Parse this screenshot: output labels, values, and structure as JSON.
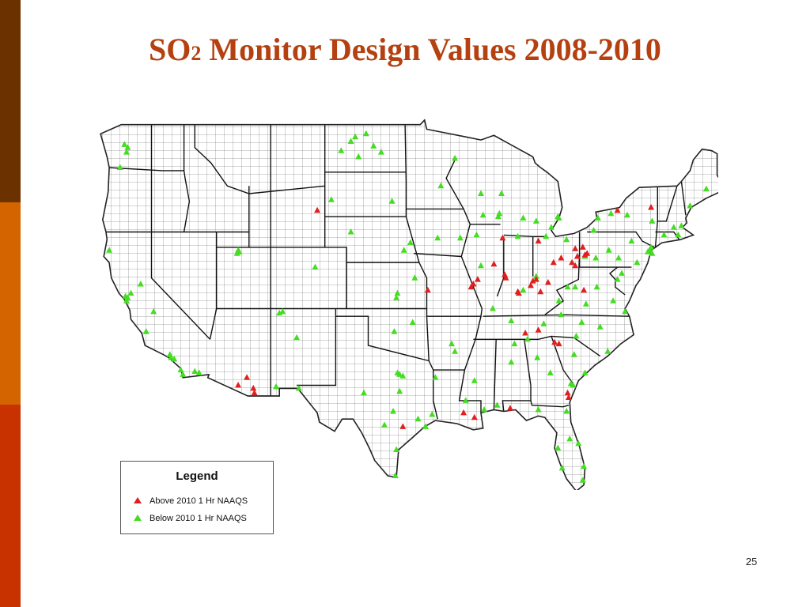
{
  "slide": {
    "title_main": "SO",
    "title_subscript": "2",
    "title_rest": " Monitor Design Values 2008-2010",
    "page_number": "25"
  },
  "colors": {
    "title": "#b4410f",
    "sidebar": [
      "#6b3200",
      "#d46400",
      "#c83200"
    ],
    "above_marker": "#e02020",
    "below_marker": "#44dd22",
    "map_lines": "#333333"
  },
  "legend": {
    "title": "Legend",
    "items": [
      {
        "label": "Above 2010 1 Hr NAAQS",
        "icon": "red-triangle-icon"
      },
      {
        "label": "Below 2010 1 Hr NAAQS",
        "icon": "green-triangle-icon"
      }
    ]
  },
  "map": {
    "region": "Contiguous United States (county boundaries)",
    "monitors_above": [
      [
        -104.7,
        43.4
      ],
      [
        -111.2,
        32.5
      ],
      [
        -110.6,
        31.8
      ],
      [
        -110.5,
        31.5
      ],
      [
        -112.0,
        32.0
      ],
      [
        -96.8,
        29.3
      ],
      [
        -91.2,
        30.2
      ],
      [
        -90.2,
        29.9
      ],
      [
        -86.9,
        30.5
      ],
      [
        -94.5,
        38.2
      ],
      [
        -90.3,
        38.6
      ],
      [
        -90.5,
        38.4
      ],
      [
        -89.9,
        38.9
      ],
      [
        -87.6,
        41.6
      ],
      [
        -88.4,
        39.9
      ],
      [
        -87.4,
        39.2
      ],
      [
        -87.3,
        39.0
      ],
      [
        -86.2,
        38.1
      ],
      [
        -86.1,
        38.0
      ],
      [
        -85.0,
        38.5
      ],
      [
        -84.8,
        38.8
      ],
      [
        -84.5,
        38.9
      ],
      [
        -83.4,
        38.7
      ],
      [
        -82.9,
        40.0
      ],
      [
        -82.2,
        40.3
      ],
      [
        -81.2,
        40.0
      ],
      [
        -80.9,
        39.8
      ],
      [
        -80.7,
        40.4
      ],
      [
        -80.0,
        40.5
      ],
      [
        -79.8,
        40.6
      ],
      [
        -80.9,
        40.9
      ],
      [
        -80.2,
        41.0
      ],
      [
        -84.3,
        41.4
      ],
      [
        -84.1,
        38.1
      ],
      [
        -85.5,
        35.4
      ],
      [
        -84.3,
        35.6
      ],
      [
        -82.8,
        34.8
      ],
      [
        -82.4,
        34.7
      ],
      [
        -81.6,
        31.5
      ],
      [
        -81.5,
        31.2
      ],
      [
        -77.0,
        43.4
      ],
      [
        -73.9,
        43.6
      ],
      [
        -80.1,
        38.2
      ]
    ],
    "monitors_below": [
      [
        -122.5,
        47.7
      ],
      [
        -122.2,
        47.5
      ],
      [
        -122.3,
        47.2
      ],
      [
        -122.9,
        46.2
      ],
      [
        -123.9,
        40.8
      ],
      [
        -122.4,
        37.8
      ],
      [
        -122.2,
        37.7
      ],
      [
        -121.9,
        38.0
      ],
      [
        -122.3,
        37.5
      ],
      [
        -120.5,
        35.5
      ],
      [
        -118.3,
        34.0
      ],
      [
        -118.2,
        33.8
      ],
      [
        -117.9,
        33.7
      ],
      [
        -117.3,
        33.0
      ],
      [
        -117.1,
        32.7
      ],
      [
        -116.0,
        32.9
      ],
      [
        -115.6,
        32.8
      ],
      [
        -119.8,
        36.8
      ],
      [
        -121.0,
        38.6
      ],
      [
        -112.0,
        40.8
      ],
      [
        -111.9,
        40.7
      ],
      [
        -112.1,
        40.6
      ],
      [
        -106.6,
        35.1
      ],
      [
        -106.4,
        31.8
      ],
      [
        -108.5,
        31.9
      ],
      [
        -108.2,
        36.7
      ],
      [
        -107.9,
        36.8
      ],
      [
        -104.9,
        39.7
      ],
      [
        -103.4,
        44.1
      ],
      [
        -101.6,
        42.0
      ],
      [
        -100.9,
        46.9
      ],
      [
        -101.6,
        47.9
      ],
      [
        -102.5,
        47.3
      ],
      [
        -101.2,
        48.2
      ],
      [
        -100.2,
        48.4
      ],
      [
        -98.8,
        47.2
      ],
      [
        -99.5,
        47.6
      ],
      [
        -97.8,
        44.0
      ],
      [
        -96.7,
        40.8
      ],
      [
        -96.1,
        41.3
      ],
      [
        -97.3,
        38.0
      ],
      [
        -97.6,
        35.5
      ],
      [
        -97.4,
        37.7
      ],
      [
        -95.9,
        36.1
      ],
      [
        -95.7,
        39.0
      ],
      [
        -97.3,
        32.8
      ],
      [
        -97.1,
        32.7
      ],
      [
        -96.8,
        32.6
      ],
      [
        -95.4,
        29.8
      ],
      [
        -94.1,
        30.1
      ],
      [
        -93.8,
        32.5
      ],
      [
        -92.3,
        34.7
      ],
      [
        -92.0,
        34.2
      ],
      [
        -91.0,
        31.0
      ],
      [
        -90.2,
        32.3
      ],
      [
        -89.3,
        30.4
      ],
      [
        -88.1,
        30.7
      ],
      [
        -86.8,
        33.5
      ],
      [
        -86.5,
        34.7
      ],
      [
        -85.3,
        35.0
      ],
      [
        -84.4,
        33.8
      ],
      [
        -83.2,
        32.8
      ],
      [
        -81.3,
        32.1
      ],
      [
        -81.1,
        32.0
      ],
      [
        -80.0,
        32.8
      ],
      [
        -81.0,
        34.0
      ],
      [
        -80.8,
        35.2
      ],
      [
        -80.3,
        36.1
      ],
      [
        -78.6,
        35.8
      ],
      [
        -77.9,
        34.2
      ],
      [
        -77.4,
        37.5
      ],
      [
        -76.3,
        36.8
      ],
      [
        -77.0,
        38.9
      ],
      [
        -76.6,
        39.3
      ],
      [
        -75.2,
        40.0
      ],
      [
        -74.2,
        40.7
      ],
      [
        -74.0,
        40.8
      ],
      [
        -73.9,
        41.0
      ],
      [
        -73.8,
        40.6
      ],
      [
        -72.7,
        41.8
      ],
      [
        -71.4,
        41.8
      ],
      [
        -71.1,
        42.4
      ],
      [
        -70.3,
        43.7
      ],
      [
        -68.8,
        44.8
      ],
      [
        -71.8,
        42.3
      ],
      [
        -73.8,
        42.7
      ],
      [
        -76.1,
        43.1
      ],
      [
        -77.6,
        43.2
      ],
      [
        -78.8,
        42.9
      ],
      [
        -79.2,
        42.1
      ],
      [
        -75.7,
        41.4
      ],
      [
        -76.9,
        40.3
      ],
      [
        -77.8,
        40.8
      ],
      [
        -79.0,
        40.3
      ],
      [
        -80.0,
        40.4
      ],
      [
        -81.7,
        41.5
      ],
      [
        -83.6,
        41.7
      ],
      [
        -84.5,
        39.1
      ],
      [
        -85.7,
        38.2
      ],
      [
        -86.8,
        36.2
      ],
      [
        -88.5,
        37.0
      ],
      [
        -89.6,
        39.8
      ],
      [
        -90.0,
        41.8
      ],
      [
        -91.5,
        41.6
      ],
      [
        -93.6,
        41.6
      ],
      [
        -93.3,
        45.0
      ],
      [
        -92.0,
        46.8
      ],
      [
        -88.0,
        43.0
      ],
      [
        -87.9,
        43.2
      ],
      [
        -89.4,
        43.1
      ],
      [
        -89.6,
        44.5
      ],
      [
        -87.7,
        44.5
      ],
      [
        -86.2,
        41.7
      ],
      [
        -85.7,
        42.9
      ],
      [
        -84.5,
        42.7
      ],
      [
        -83.1,
        42.3
      ],
      [
        -82.5,
        43.0
      ],
      [
        -82.4,
        42.9
      ],
      [
        -80.9,
        38.4
      ],
      [
        -79.9,
        37.3
      ],
      [
        -78.9,
        38.4
      ],
      [
        -81.6,
        38.4
      ],
      [
        -82.4,
        37.5
      ],
      [
        -83.8,
        36.0
      ],
      [
        -82.2,
        36.6
      ],
      [
        -84.3,
        30.4
      ],
      [
        -81.7,
        30.3
      ],
      [
        -81.4,
        28.5
      ],
      [
        -82.5,
        27.9
      ],
      [
        -82.1,
        26.6
      ],
      [
        -80.2,
        25.8
      ],
      [
        -80.1,
        26.7
      ],
      [
        -80.6,
        28.2
      ],
      [
        -97.4,
        27.8
      ],
      [
        -97.5,
        26.1
      ],
      [
        -98.5,
        29.4
      ],
      [
        -97.7,
        30.3
      ],
      [
        -94.7,
        29.3
      ],
      [
        -100.4,
        31.5
      ],
      [
        -97.1,
        31.6
      ]
    ]
  }
}
